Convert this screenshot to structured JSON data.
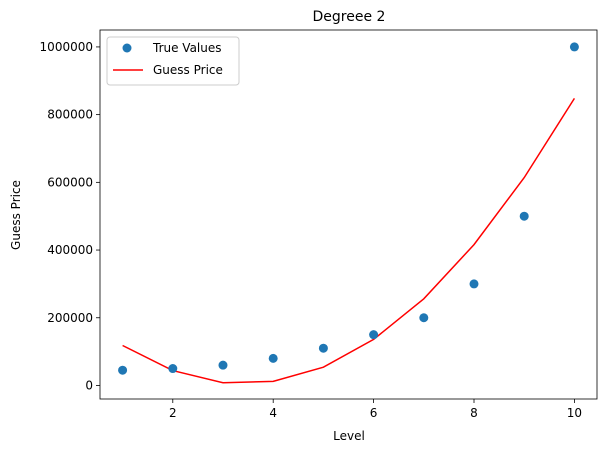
{
  "chart_data": {
    "type": "scatter",
    "title": "Degreee 2",
    "xlabel": "Level",
    "ylabel": "Guess Price",
    "xlim": [
      0.55,
      10.45
    ],
    "ylim": [
      -40000,
      1050000
    ],
    "xticks": [
      2,
      4,
      6,
      8,
      10
    ],
    "yticks": [
      0,
      200000,
      400000,
      600000,
      800000,
      1000000
    ],
    "grid": false,
    "legend_position": "top-left",
    "series": [
      {
        "name": "True Values",
        "kind": "scatter",
        "color": "#1f77b4",
        "x": [
          1,
          2,
          3,
          4,
          5,
          6,
          7,
          8,
          9,
          10
        ],
        "y": [
          45000,
          50000,
          60000,
          80000,
          110000,
          150000,
          200000,
          300000,
          500000,
          1000000
        ]
      },
      {
        "name": "Guess Price",
        "kind": "line",
        "color": "#ff0000",
        "x": [
          1,
          2,
          3,
          4,
          5,
          6,
          7,
          8,
          9,
          10
        ],
        "y": [
          118000,
          44000,
          8000,
          12000,
          54000,
          136000,
          256000,
          416000,
          614000,
          848000
        ]
      }
    ]
  }
}
